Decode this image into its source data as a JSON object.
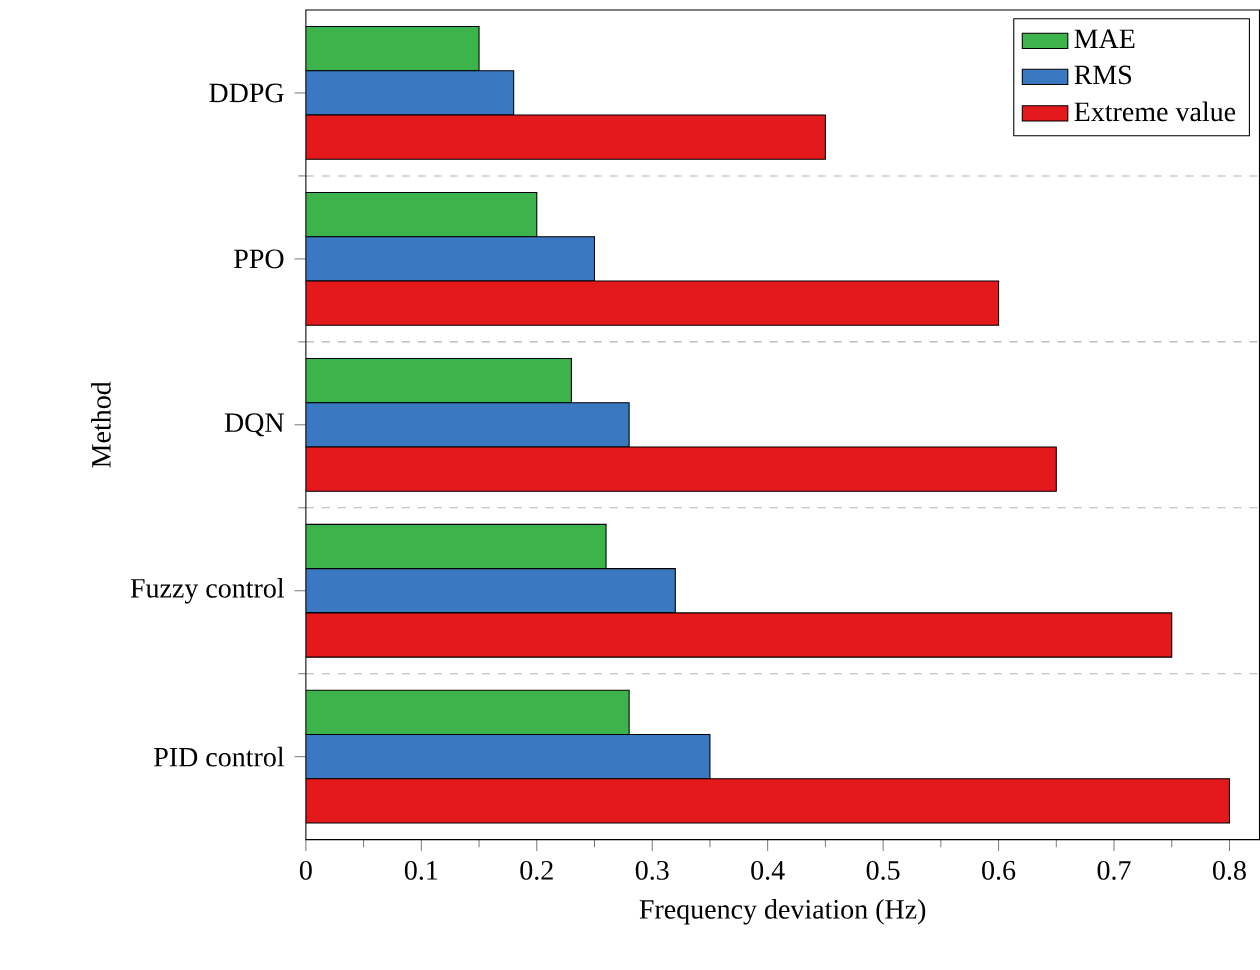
{
  "chart_data": {
    "type": "bar",
    "orientation": "horizontal",
    "xlabel": "Frequency deviation (Hz)",
    "ylabel": "Method",
    "categories": [
      "DDPG",
      "PPO",
      "DQN",
      "Fuzzy control",
      "PID control"
    ],
    "series": [
      {
        "name": "MAE",
        "color": "#3cb44b",
        "values": [
          0.15,
          0.2,
          0.23,
          0.26,
          0.28
        ]
      },
      {
        "name": "RMS",
        "color": "#3a78c2",
        "values": [
          0.18,
          0.25,
          0.28,
          0.32,
          0.35
        ]
      },
      {
        "name": "Extreme value",
        "color": "#e3191c",
        "values": [
          0.45,
          0.6,
          0.65,
          0.75,
          0.8
        ]
      }
    ],
    "xlim": [
      0,
      0.826
    ],
    "xticks": [
      0,
      0.1,
      0.2,
      0.3,
      0.4,
      0.5,
      0.6,
      0.7,
      0.8
    ],
    "grid": "y",
    "legend": "top right"
  }
}
